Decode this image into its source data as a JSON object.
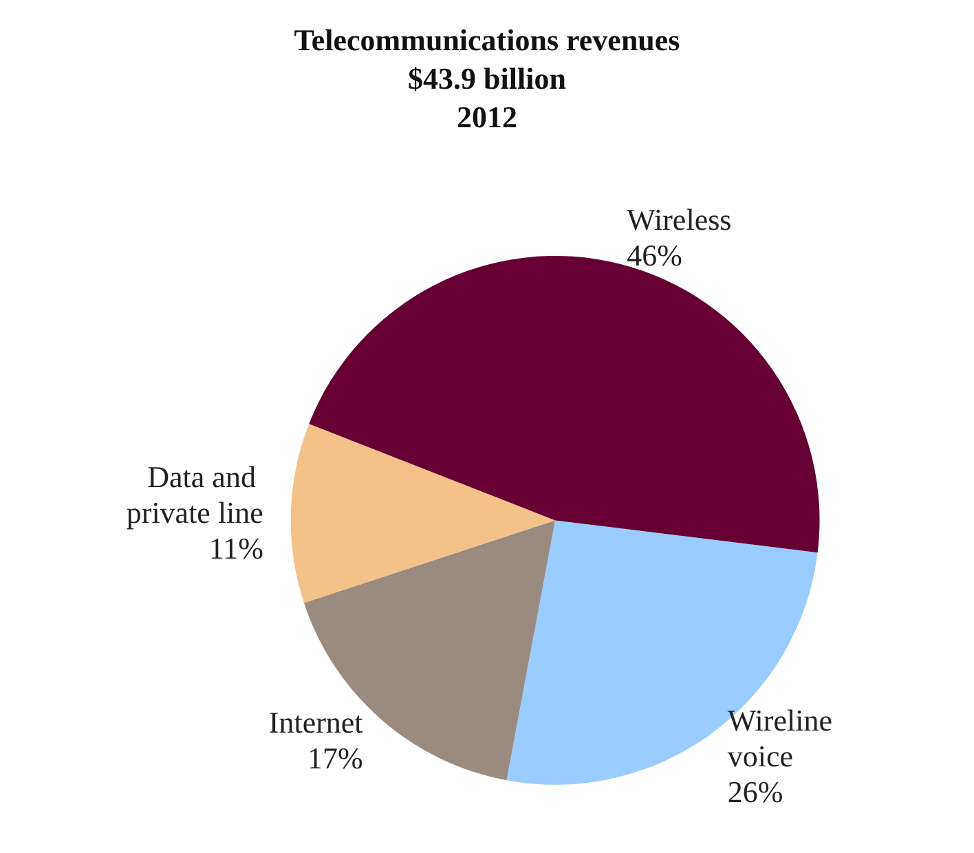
{
  "chart_data": {
    "type": "pie",
    "title": "Telecommunications revenues\n$43.9 billion\n2012",
    "categories": [
      "Wireline voice",
      "Internet",
      "Data and private line",
      "Wireless"
    ],
    "values": [
      26,
      17,
      11,
      46
    ],
    "value_labels": [
      "26%",
      "17%",
      "11%",
      "46%"
    ],
    "colors": [
      "#99ccff",
      "#9a8b80",
      "#f4c189",
      "#660033"
    ],
    "legend": false
  }
}
